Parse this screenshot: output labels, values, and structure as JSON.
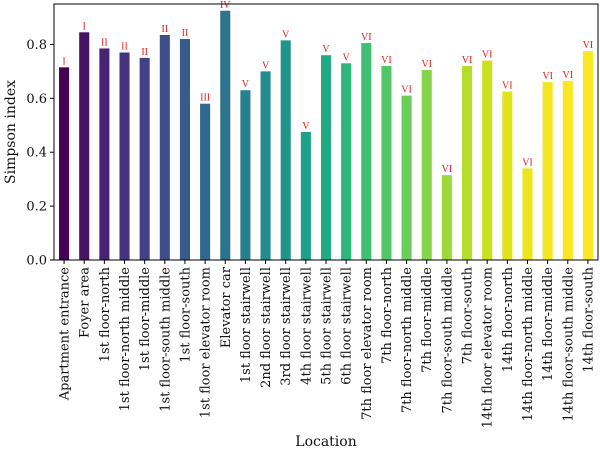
{
  "chart_data": {
    "type": "bar",
    "xlabel": "Location",
    "ylabel": "Simpson index",
    "ylim": [
      0,
      0.95
    ],
    "yticks": [
      "0.0",
      "0.2",
      "0.4",
      "0.6",
      "0.8"
    ],
    "ytick_values": [
      0,
      0.2,
      0.4,
      0.6,
      0.8
    ],
    "grid": false,
    "categories": [
      "Apartment entrance",
      "Foyer area",
      "1st floor-north",
      "1st floor-north middle",
      "1st floor-middle",
      "1st floor-south middle",
      "1st floor-south",
      "1st floor elevator room",
      "Elevator car",
      "1st floor stairwell",
      "2nd floor stairwell",
      "3rd floor stairwell",
      "4th floor stairwell",
      "5th floor stairwell",
      "6th floor stairwell",
      "7th floor elevator room",
      "7th floor-north",
      "7th floor-north middle",
      "7th floor-middle",
      "7th floor-south middle",
      "7th floor-south",
      "14th floor elevator room",
      "14th floor-north",
      "14th floor-north middle",
      "14th floor-middle",
      "14th floor-south middle",
      "14th floor-south"
    ],
    "values": [
      0.715,
      0.845,
      0.785,
      0.77,
      0.75,
      0.835,
      0.82,
      0.58,
      0.925,
      0.63,
      0.7,
      0.815,
      0.475,
      0.76,
      0.73,
      0.805,
      0.72,
      0.61,
      0.705,
      0.315,
      0.72,
      0.74,
      0.625,
      0.34,
      0.66,
      0.665,
      0.775
    ],
    "bar_labels": [
      "I",
      "I",
      "II",
      "II",
      "II",
      "II",
      "II",
      "III",
      "IV",
      "V",
      "V",
      "V",
      "V",
      "V",
      "V",
      "VI",
      "VI",
      "VI",
      "VI",
      "VI",
      "VI",
      "VI",
      "VI",
      "VI",
      "VI",
      "VI",
      "VI"
    ],
    "colors": [
      "#440154",
      "#471365",
      "#482374",
      "#46337f",
      "#424086",
      "#3d4e8a",
      "#375b8d",
      "#31688e",
      "#2c738e",
      "#287f8e",
      "#238a8d",
      "#20958b",
      "#1fa088",
      "#22ab82",
      "#2eb57c",
      "#3fbf71",
      "#55c667",
      "#6ccd5a",
      "#84d34b",
      "#9dd93b",
      "#b5de2b",
      "#cce11e",
      "#e0e31a",
      "#ede61f",
      "#f4e722",
      "#f9e724",
      "#fde725"
    ]
  }
}
